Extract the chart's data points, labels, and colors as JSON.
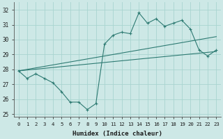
{
  "xlabel": "Humidex (Indice chaleur)",
  "background_color": "#cde8e6",
  "grid_color": "#a8d4d0",
  "line_color": "#2d7a72",
  "xlim": [
    -0.5,
    23.5
  ],
  "ylim": [
    24.8,
    32.5
  ],
  "yticks": [
    25,
    26,
    27,
    28,
    29,
    30,
    31,
    32
  ],
  "xticks": [
    0,
    1,
    2,
    3,
    4,
    5,
    6,
    7,
    8,
    9,
    10,
    11,
    12,
    13,
    14,
    15,
    16,
    17,
    18,
    19,
    20,
    21,
    22,
    23
  ],
  "line1_x": [
    0,
    1,
    2,
    3,
    4,
    5,
    6,
    7,
    8,
    9,
    10,
    11,
    12,
    13,
    14,
    15,
    16,
    17,
    18,
    19,
    20,
    21,
    22,
    23
  ],
  "line1_y": [
    27.9,
    27.4,
    27.7,
    27.4,
    27.1,
    26.5,
    25.8,
    25.8,
    25.3,
    25.7,
    29.7,
    30.3,
    30.5,
    30.4,
    31.8,
    31.1,
    31.4,
    30.9,
    31.1,
    31.3,
    30.7,
    29.3,
    28.9,
    29.3
  ],
  "line2_x": [
    0,
    23
  ],
  "line2_y": [
    27.9,
    30.2
  ],
  "line3_x": [
    0,
    23
  ],
  "line3_y": [
    27.9,
    29.2
  ]
}
